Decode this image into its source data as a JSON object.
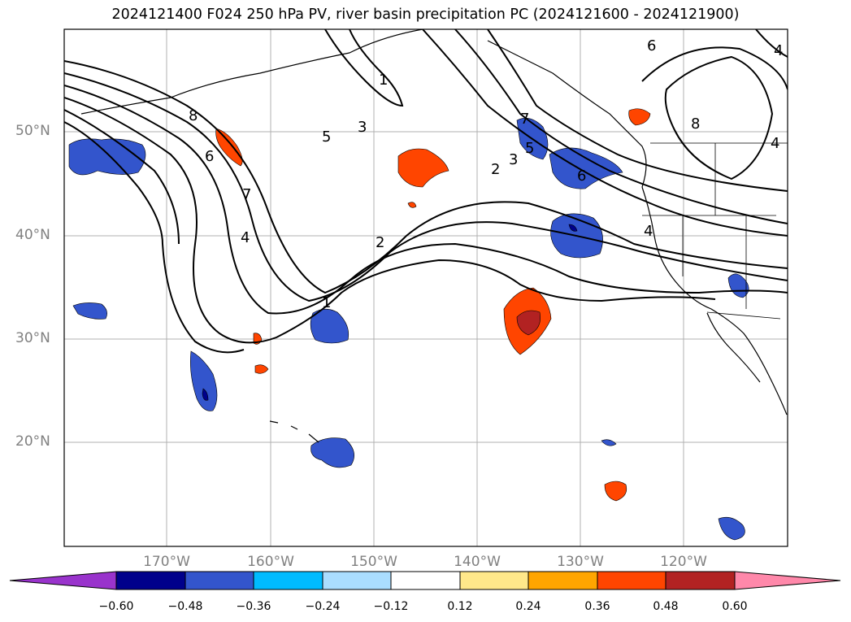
{
  "title": "2024121400 F024 250 hPa PV, river basin precipitation PC (2024121600 - 2024121900)",
  "lat_labels": [
    {
      "text": "50°N",
      "lat": 50
    },
    {
      "text": "40°N",
      "lat": 40
    },
    {
      "text": "30°N",
      "lat": 30
    },
    {
      "text": "20°N",
      "lat": 20
    }
  ],
  "lon_labels": [
    {
      "text": "170°W",
      "lon": -170
    },
    {
      "text": "160°W",
      "lon": -160
    },
    {
      "text": "150°W",
      "lon": -150
    },
    {
      "text": "140°W",
      "lon": -140
    },
    {
      "text": "130°W",
      "lon": -130
    },
    {
      "text": "120°W",
      "lon": -120
    }
  ],
  "colorbar": {
    "ticks": [
      "−0.60",
      "−0.48",
      "−0.36",
      "−0.24",
      "−0.12",
      "0.12",
      "0.24",
      "0.36",
      "0.48",
      "0.60"
    ],
    "colors": [
      "#9933cc",
      "#00008b",
      "#3355cc",
      "#00bbff",
      "#aaddff",
      "#ffffff",
      "#ffe88a",
      "#ffa500",
      "#ff4500",
      "#b22222",
      "#ff88aa"
    ]
  },
  "contour_labels": [
    "1",
    "2",
    "3",
    "4",
    "5",
    "6",
    "7",
    "8"
  ]
}
